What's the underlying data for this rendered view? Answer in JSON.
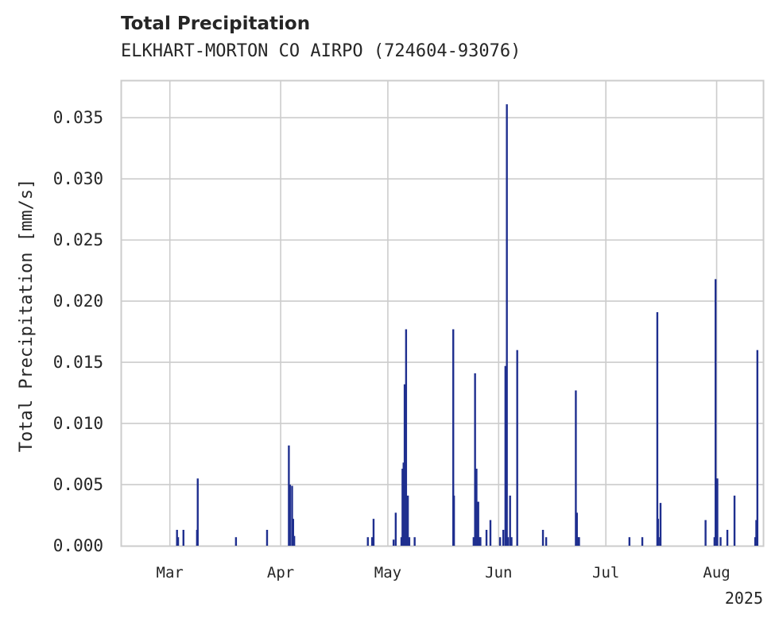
{
  "chart_data": {
    "type": "bar",
    "title": "Total Precipitation",
    "subtitle": "ELKHART-MORTON CO AIRPO (724604-93076)",
    "xlabel": "",
    "ylabel": "Total Precipitation [mm/s]",
    "year_label": "2025",
    "ylim": [
      0,
      0.038
    ],
    "yticks": [
      "0.000",
      "0.005",
      "0.010",
      "0.015",
      "0.020",
      "0.025",
      "0.030",
      "0.035"
    ],
    "ytick_values": [
      0,
      0.005,
      0.01,
      0.015,
      0.02,
      0.025,
      0.03,
      0.035
    ],
    "xlim_days": [
      -13.5,
      166
    ],
    "xticks": [
      {
        "label": "Mar",
        "day": 0
      },
      {
        "label": "Apr",
        "day": 31
      },
      {
        "label": "May",
        "day": 61
      },
      {
        "label": "Jun",
        "day": 92
      },
      {
        "label": "Jul",
        "day": 122
      },
      {
        "label": "Aug",
        "day": 153
      }
    ],
    "grid": true,
    "bar_color": "#1f2f8f",
    "series": [
      {
        "name": "Total Precipitation",
        "x_unit": "days since Mar 1, 2025",
        "x": [
          2,
          2.3,
          3.8,
          7.6,
          7.8,
          18.5,
          27.2,
          33.3,
          33.6,
          34.2,
          34.5,
          34.8,
          55.4,
          56.6,
          57.0,
          62.6,
          63.2,
          64.8,
          65.1,
          65.4,
          65.7,
          66.1,
          66.6,
          67.0,
          68.5,
          79.3,
          79.5,
          85.0,
          85.4,
          85.8,
          86.3,
          86.6,
          86.9,
          88.6,
          89.7,
          92.4,
          93.3,
          93.9,
          94.3,
          94.6,
          95.2,
          95.6,
          97.2,
          104.4,
          105.3,
          113.6,
          113.9,
          114.2,
          114.5,
          128.6,
          132.2,
          136.4,
          136.6,
          136.8,
          137.3,
          149.9,
          152.4,
          152.7,
          152.9,
          153.2,
          154.1,
          156.0,
          158.0,
          163.8,
          164.1,
          164.4
        ],
        "values": [
          0.0013,
          0.0007,
          0.0013,
          0.0013,
          0.0055,
          0.0007,
          0.0013,
          0.0082,
          0.005,
          0.0049,
          0.0022,
          0.0008,
          0.0007,
          0.0007,
          0.0022,
          0.0005,
          0.0027,
          0.0007,
          0.0063,
          0.0068,
          0.0132,
          0.0177,
          0.0041,
          0.0007,
          0.0007,
          0.0177,
          0.0041,
          0.0007,
          0.0141,
          0.0063,
          0.0036,
          0.0007,
          0.0007,
          0.0013,
          0.0021,
          0.0007,
          0.0013,
          0.0147,
          0.0361,
          0.0007,
          0.0041,
          0.0007,
          0.016,
          0.0013,
          0.0007,
          0.0127,
          0.0027,
          0.0007,
          0.0007,
          0.0007,
          0.0007,
          0.0191,
          0.0022,
          0.0007,
          0.0035,
          0.0021,
          0.0007,
          0.0218,
          0.0055,
          0.0055,
          0.0007,
          0.0013,
          0.0041,
          0.0007,
          0.0021,
          0.016
        ]
      }
    ]
  }
}
